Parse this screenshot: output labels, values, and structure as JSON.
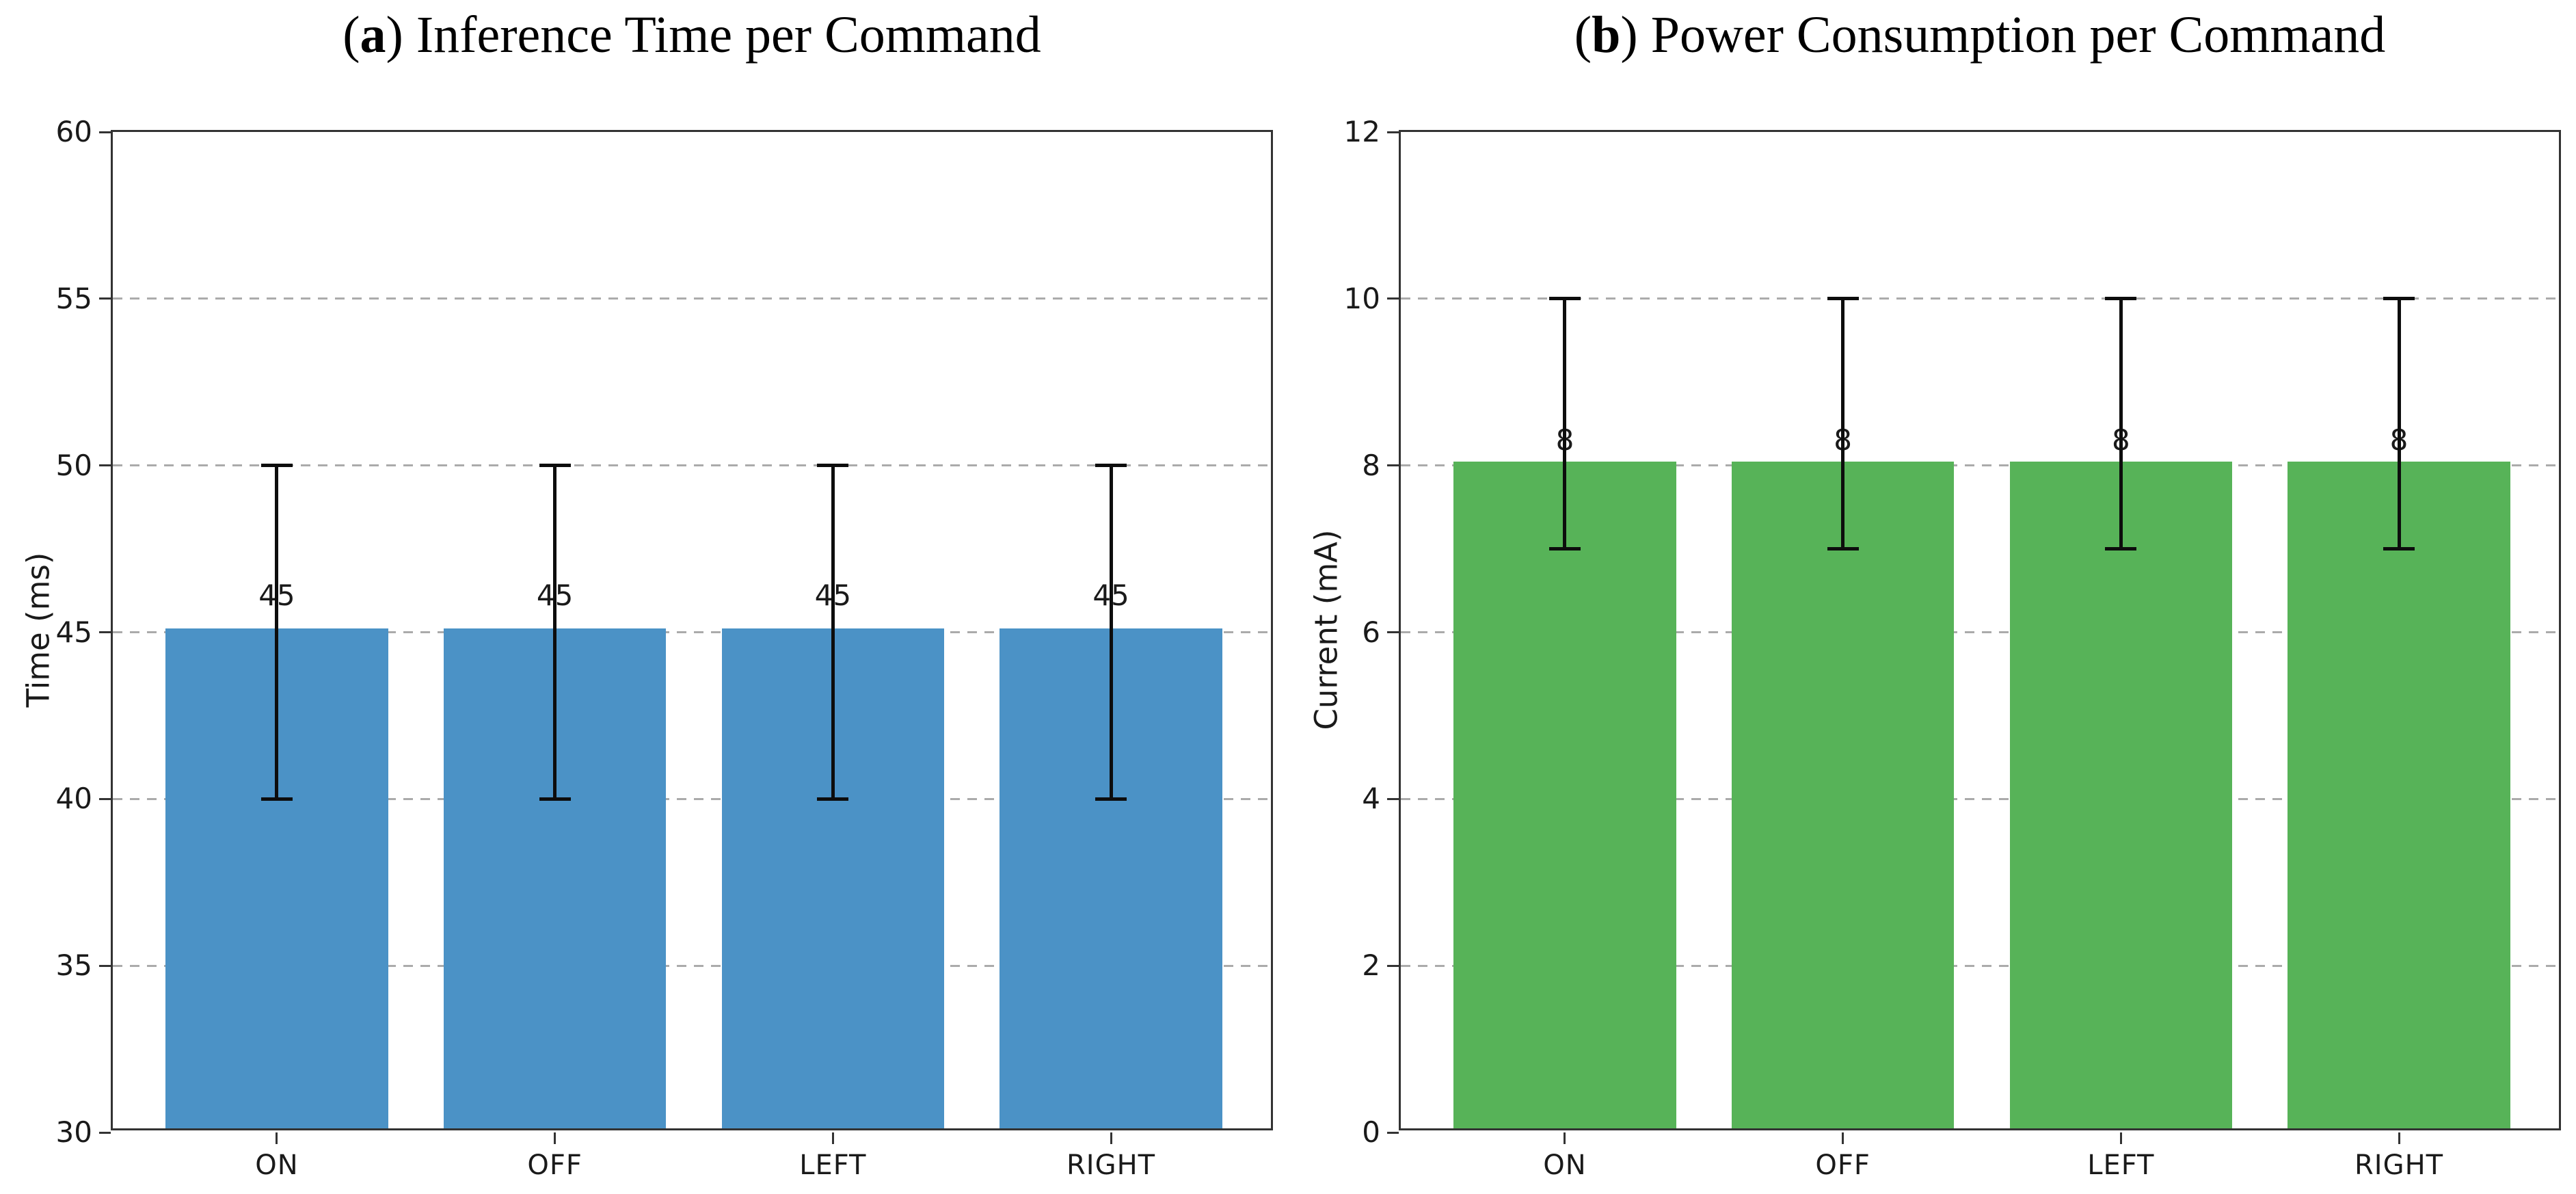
{
  "figure": {
    "background": "#ffffff",
    "text_color": "#1a1a1a",
    "spine_color": "#333333",
    "grid_color": "#ababab",
    "error_bar_color": "#0d0d0d"
  },
  "chart_data": [
    {
      "id": "a",
      "type": "bar",
      "title_prefix": "(",
      "title_letter": "a",
      "title_suffix": ") Inference Time per Command",
      "categories": [
        "ON",
        "OFF",
        "LEFT",
        "RIGHT"
      ],
      "values": [
        45,
        45,
        45,
        45
      ],
      "bar_labels": [
        "45",
        "45",
        "45",
        "45"
      ],
      "errors_low": [
        5,
        5,
        5,
        5
      ],
      "errors_high": [
        5,
        5,
        5,
        5
      ],
      "xlabel": "",
      "ylabel": "Time (ms)",
      "ylim": [
        30,
        60
      ],
      "yticks": [
        30,
        35,
        40,
        45,
        50,
        55,
        60
      ],
      "bar_color": "#4b92c6",
      "grid": "horizontal-dashed",
      "legend": "none",
      "label_offset": 1.1
    },
    {
      "id": "b",
      "type": "bar",
      "title_prefix": "(",
      "title_letter": "b",
      "title_suffix": ") Power Consumption per Command",
      "categories": [
        "ON",
        "OFF",
        "LEFT",
        "RIGHT"
      ],
      "values": [
        8,
        8,
        8,
        8
      ],
      "bar_labels": [
        "8",
        "8",
        "8",
        "8"
      ],
      "errors_low": [
        1,
        1,
        1,
        1
      ],
      "errors_high": [
        2,
        2,
        2,
        2
      ],
      "xlabel": "",
      "ylabel": "Current (mA)",
      "ylim": [
        0,
        12
      ],
      "yticks": [
        0,
        2,
        4,
        6,
        8,
        10,
        12
      ],
      "bar_color": "#57b358",
      "grid": "horizontal-dashed",
      "legend": "none",
      "label_offset": 0.3
    }
  ]
}
